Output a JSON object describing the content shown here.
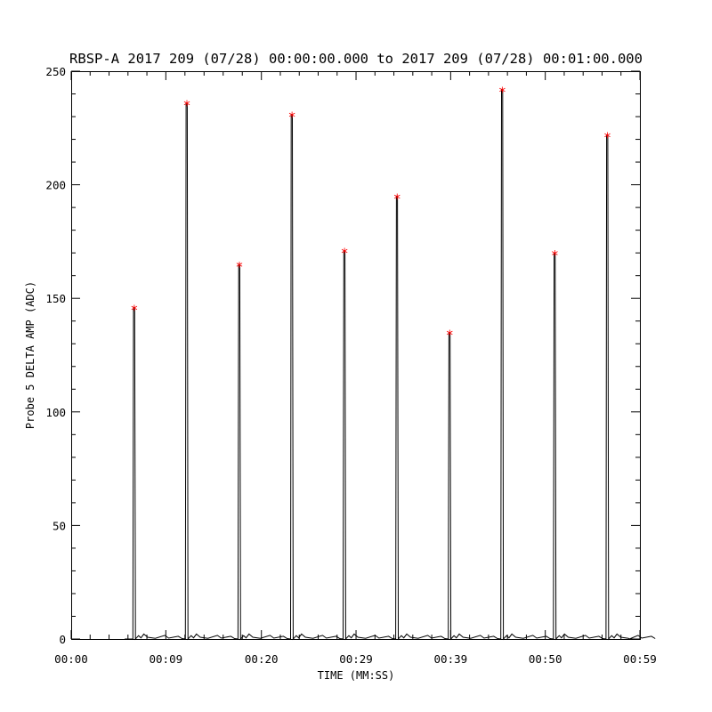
{
  "chart_data": {
    "type": "line",
    "title": "RBSP-A 2017 209 (07/28) 00:00:00.000 to 2017 209 (07/28) 00:01:00.000",
    "xlabel": "TIME (MM:SS)",
    "ylabel": "Probe 5 DELTA AMP (ADC)",
    "xlim": [
      0,
      59.5
    ],
    "ylim": [
      0,
      250
    ],
    "x_tick_values": [
      0,
      9.9,
      19.9,
      29.8,
      39.7,
      49.6,
      59.5
    ],
    "x_tick_labels": [
      "00:00",
      "00:09",
      "00:20",
      "00:29",
      "00:39",
      "00:50",
      "00:59"
    ],
    "y_tick_values": [
      0,
      50,
      100,
      150,
      200,
      250
    ],
    "y_tick_labels": [
      "0",
      "50",
      "100",
      "150",
      "200",
      "250"
    ],
    "grid": false,
    "line_color": "#000000",
    "marker_color": "#ff0000",
    "marker_symbol": "*",
    "series": [
      {
        "x": [
          6.6,
          12.1,
          17.6,
          23.1,
          28.6,
          34.1,
          39.6,
          45.1,
          50.6,
          56.1
        ],
        "y": [
          146,
          236,
          165,
          231,
          171,
          195,
          135,
          242,
          170,
          222
        ]
      }
    ]
  }
}
